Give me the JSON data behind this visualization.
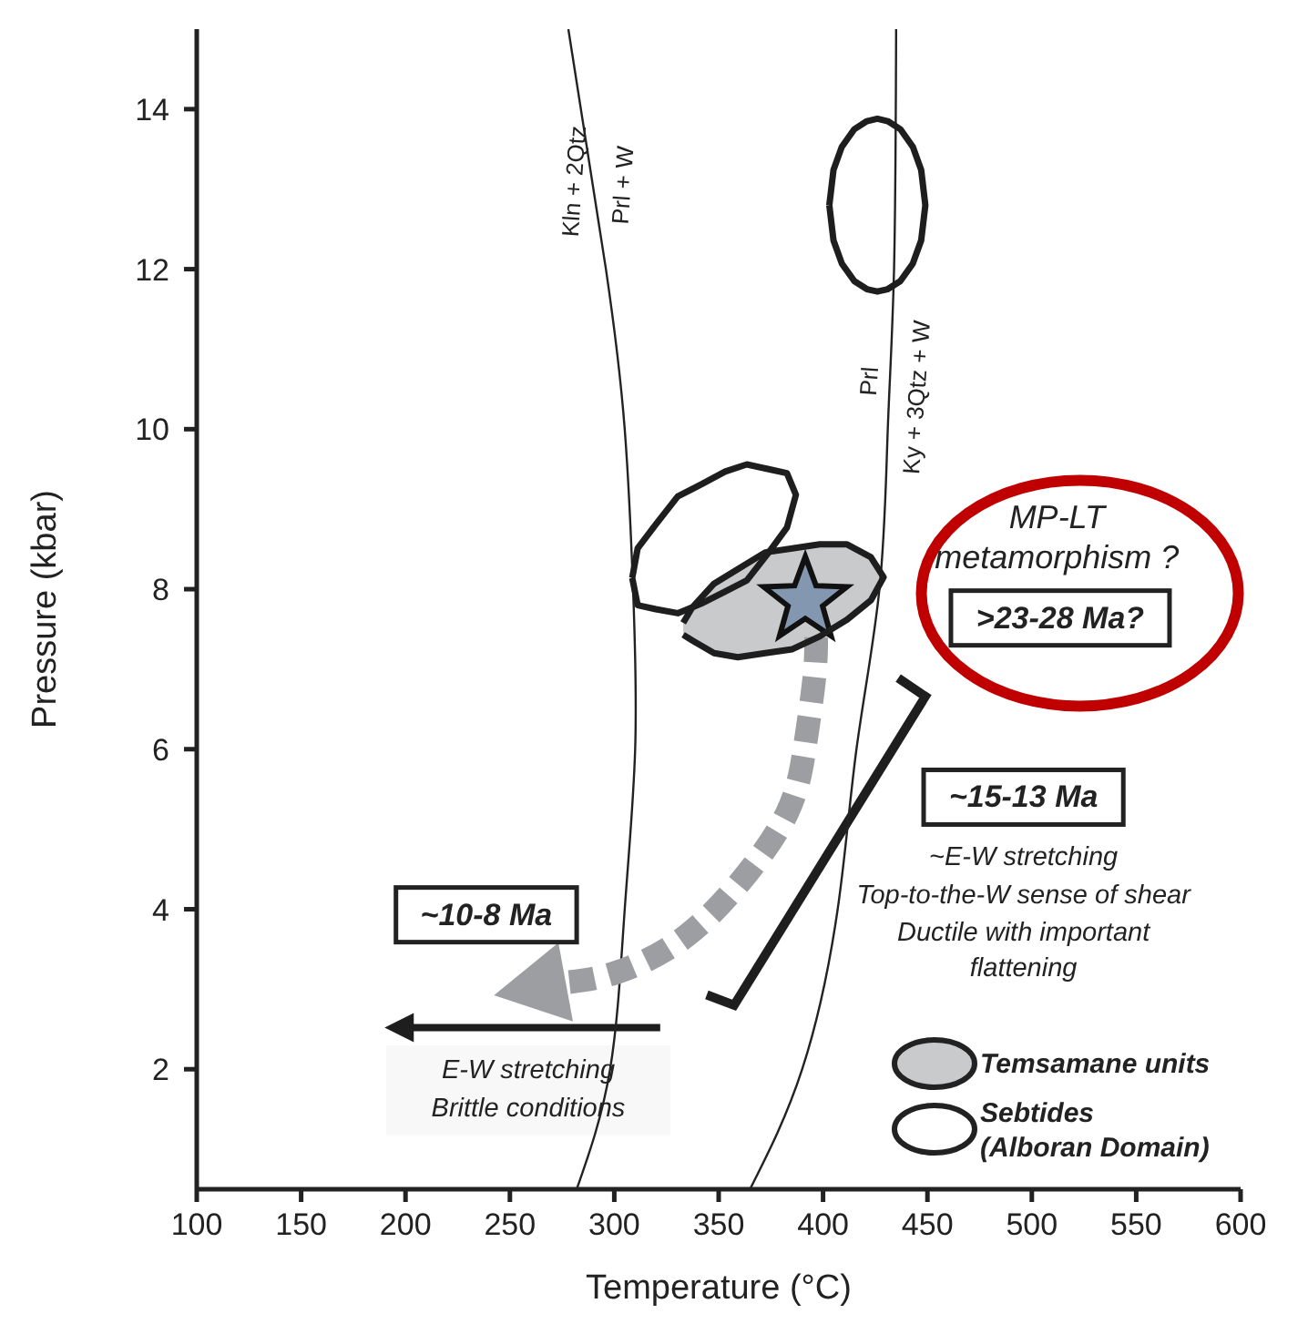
{
  "chart_data": {
    "type": "line",
    "xlabel": "Temperature (°C)",
    "ylabel": "Pressure (kbar)",
    "xlim": [
      100,
      600
    ],
    "xticks": [
      100,
      150,
      200,
      250,
      300,
      350,
      400,
      450,
      500,
      550,
      600
    ],
    "ylim": [
      0.5,
      15
    ],
    "yticks": [
      2,
      4,
      6,
      8,
      10,
      12,
      14
    ],
    "legend": "bottom right",
    "marker": "none",
    "series": [
      {
        "color": "#222222",
        "x": [
          278,
          296,
          305,
          309,
          310,
          305,
          298,
          282
        ],
        "values": [
          15,
          12,
          10,
          8,
          6,
          4,
          2,
          0.5
        ]
      },
      {
        "color": "#222222",
        "x": [
          435,
          434,
          431,
          427,
          416,
          407,
          390,
          365
        ],
        "values": [
          15,
          12,
          10,
          8,
          6,
          4,
          2,
          0.5
        ]
      },
      {
        "color": "#9d9ea2",
        "line_style": "dashed",
        "x": [
          396.7,
          395.8,
          391.4,
          382.7,
          359,
          331,
          300,
          275
        ],
        "values": [
          7.4,
          6.89,
          6.05,
          5.2,
          4.3,
          3.6,
          3.2,
          3.08
        ]
      },
      {
        "type": "area",
        "name": "Sebtides (Alboran Domain)",
        "color": "#ffffff",
        "x": [
          403,
          405,
          409,
          415,
          421,
          426,
          431,
          437,
          443,
          447,
          449,
          447,
          443,
          437,
          431,
          426,
          421,
          415,
          409,
          405,
          403
        ],
        "values": [
          12.8,
          13.24,
          13.53,
          13.75,
          13.85,
          13.88,
          13.85,
          13.75,
          13.53,
          13.24,
          12.8,
          12.36,
          12.07,
          11.85,
          11.75,
          11.72,
          11.75,
          11.85,
          12.07,
          12.36,
          12.8
        ]
      },
      {
        "type": "area",
        "color": "#ffffff",
        "x": [
          308.6,
          311.2,
          319.9,
          330.4,
          341.7,
          353.1,
          363.5,
          374,
          382.7,
          387,
          382.7,
          374,
          363.5,
          353.1,
          341.7,
          330.4,
          319.9,
          311.2,
          308.6
        ],
        "values": [
          8.14,
          8.51,
          8.81,
          9.16,
          9.31,
          9.47,
          9.56,
          9.5,
          9.45,
          9.18,
          8.77,
          8.46,
          8.11,
          7.97,
          7.82,
          7.7,
          7.75,
          7.8,
          8.14
        ]
      },
      {
        "type": "area",
        "name": "Temsamane units",
        "color": "#c8cacc",
        "x": [
          333,
          337.3,
          347.8,
          359.2,
          372.3,
          385.3,
          398.4,
          411.5,
          422.9,
          429,
          422.9,
          411.5,
          398.4,
          385.3,
          372.3,
          359.2,
          347.8,
          337.3,
          333
        ],
        "values": [
          7.58,
          7.77,
          8.07,
          8.25,
          8.46,
          8.51,
          8.56,
          8.56,
          8.4,
          8.15,
          7.86,
          7.62,
          7.41,
          7.25,
          7.2,
          7.15,
          7.2,
          7.36,
          7.43
        ]
      }
    ],
    "annotations": [
      "Kln + 2Qtz",
      "Prl + W",
      "Prl",
      "Ky + 3Qtz  + W",
      "MP-LT",
      "metamorphism ?",
      ">23-28 Ma?",
      "~15-13 Ma",
      "~E-W stretching",
      "Top-to-the-W sense of shear",
      "Ductile with important",
      "flattening",
      "~10-8 Ma",
      "E-W stretching",
      "Brittle conditions"
    ]
  }
}
